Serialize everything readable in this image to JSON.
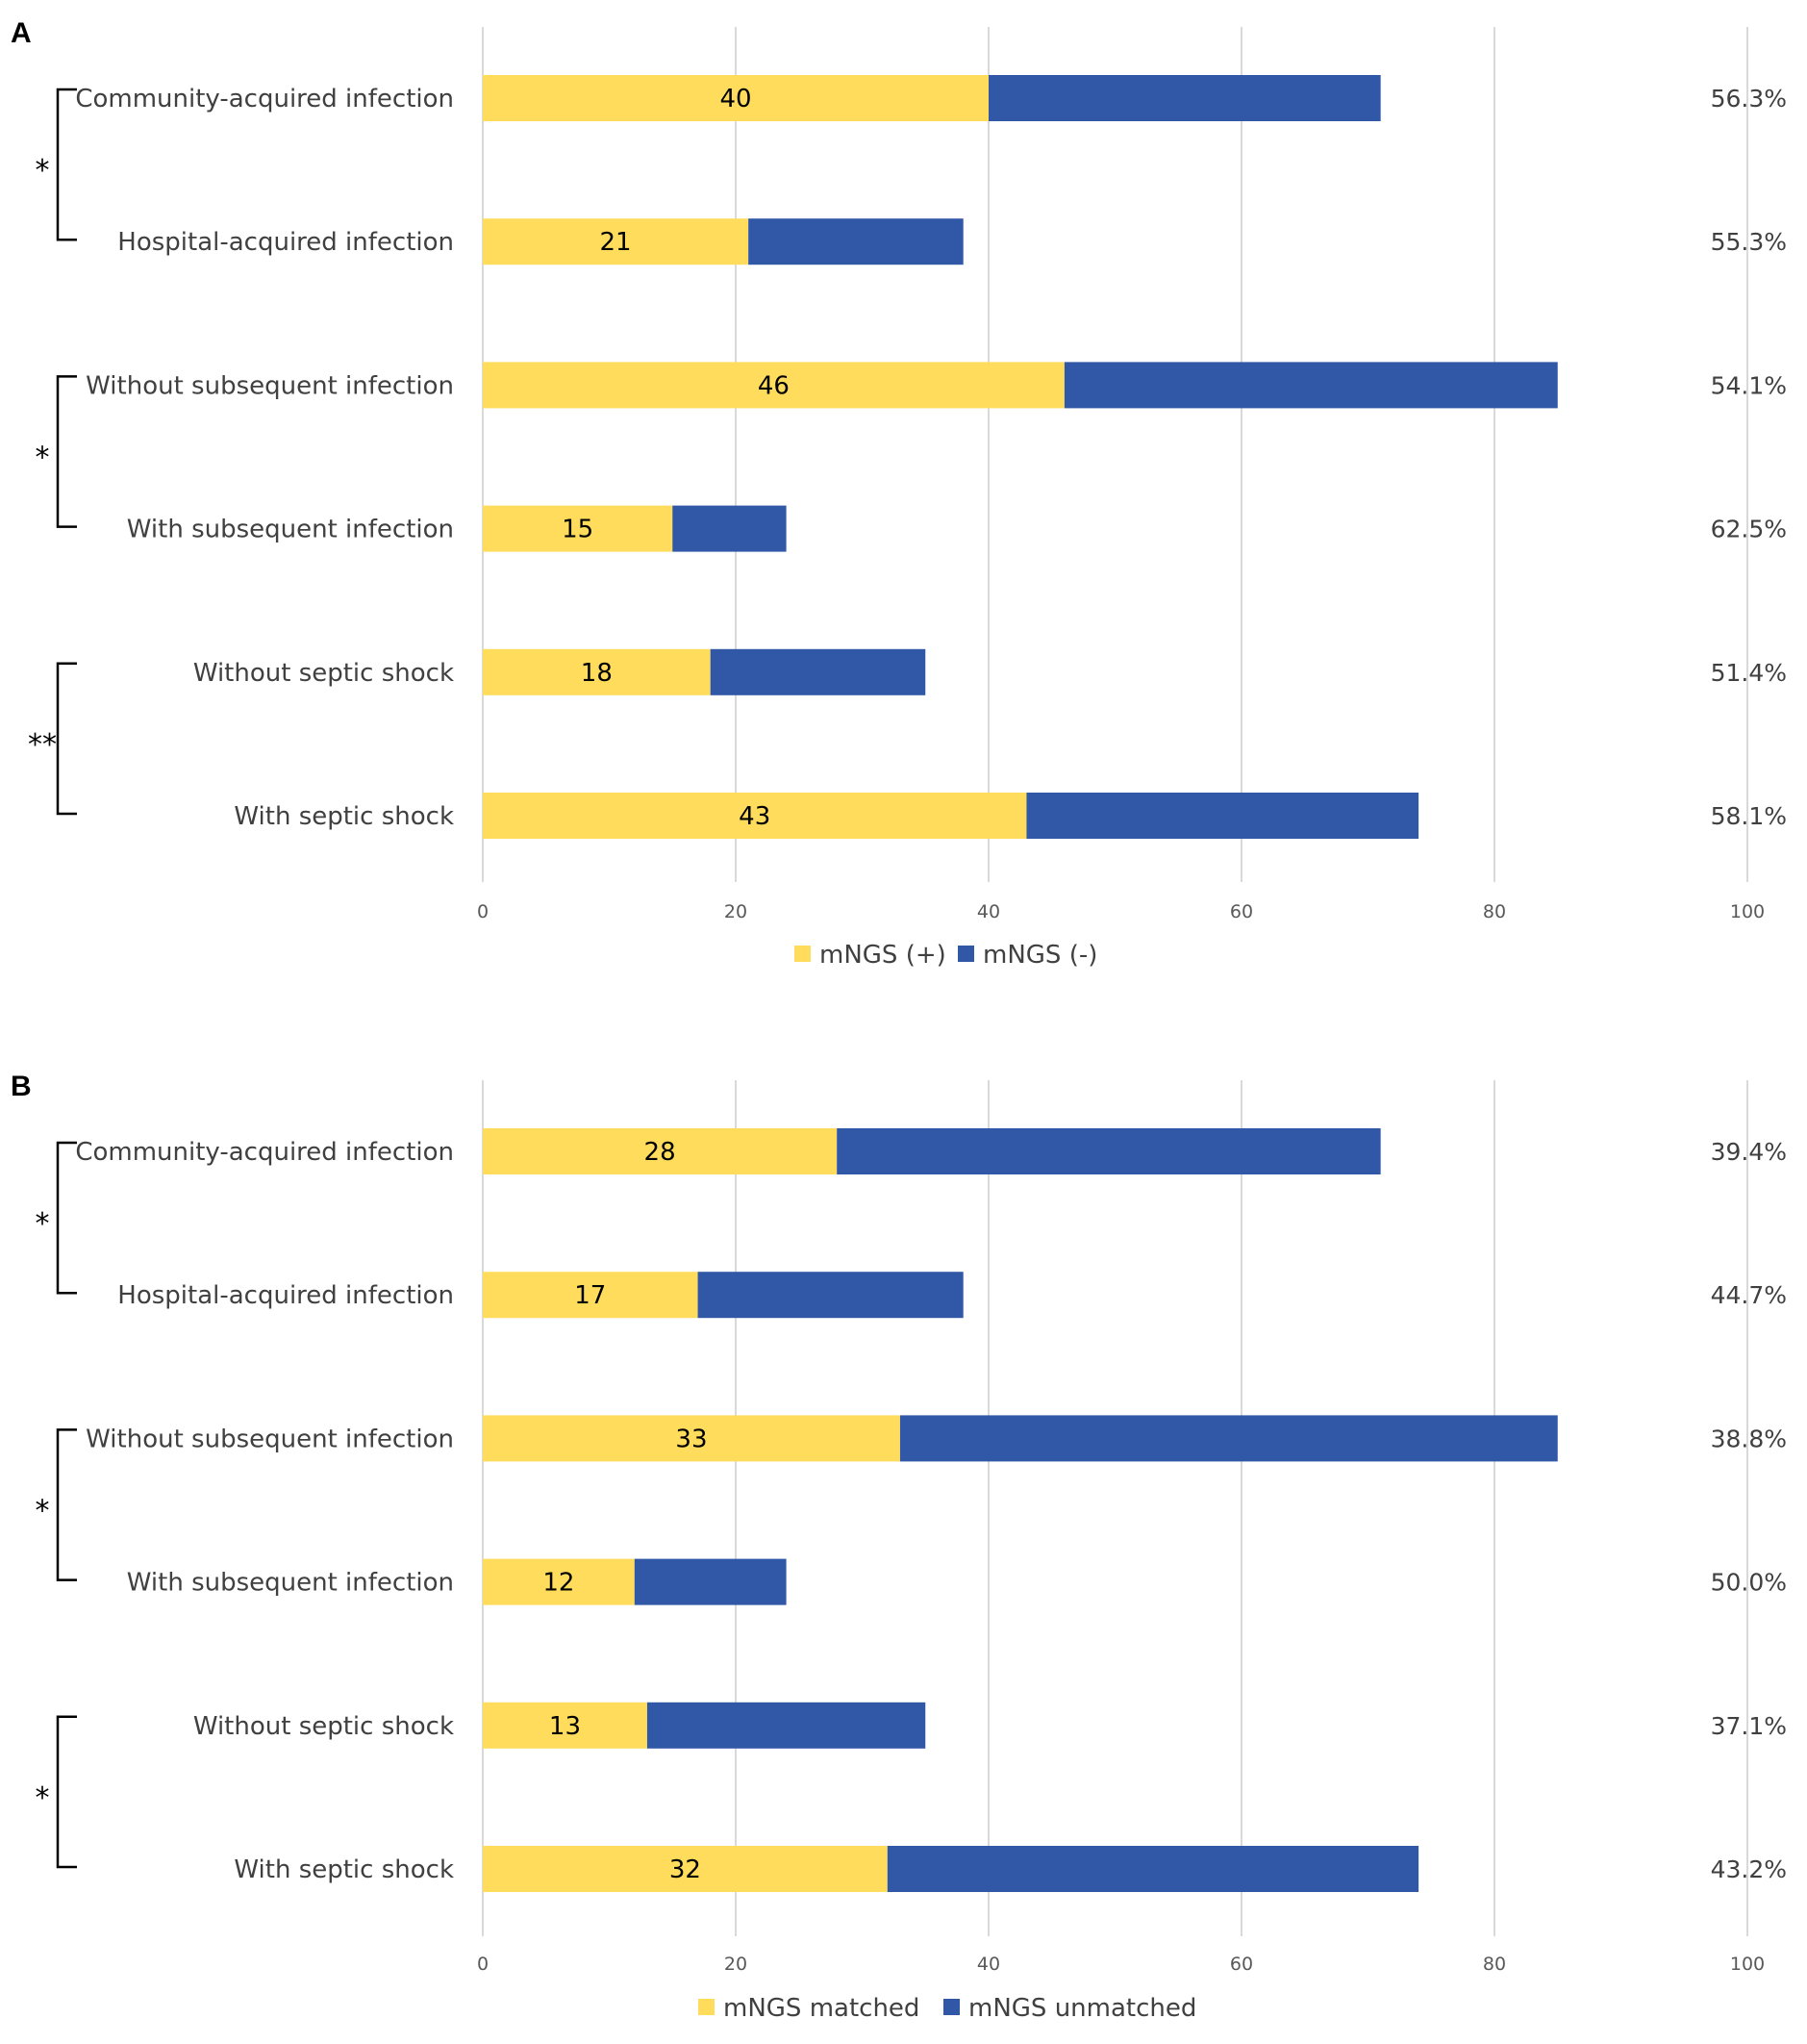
{
  "colors": {
    "positive": "#FFDC5C",
    "negative": "#3058A6",
    "grid": "#D9D9D9"
  },
  "chart_data": [
    {
      "panel": "A",
      "type": "bar",
      "orientation": "horizontal",
      "stacked": true,
      "categories": [
        "Community-acquired infection",
        "Hospital-acquired infection",
        "Without subsequent infection",
        "With subsequent infection",
        "Without septic shock",
        "With septic shock"
      ],
      "series": [
        {
          "name": "mNGS (+)",
          "color": "#FFDC5C",
          "values": [
            40,
            21,
            46,
            15,
            18,
            43
          ]
        },
        {
          "name": "mNGS (-)",
          "color": "#3058A6",
          "values": [
            31,
            17,
            39,
            9,
            17,
            31
          ]
        }
      ],
      "percentages": [
        "56.3%",
        "55.3%",
        "54.1%",
        "62.5%",
        "51.4%",
        "58.1%"
      ],
      "significance": [
        "*",
        "*",
        "**"
      ],
      "xlim": [
        0,
        100
      ],
      "xticks": [
        "0",
        "20",
        "40",
        "60",
        "80",
        "100"
      ],
      "grid": true,
      "legend_position": "bottom"
    },
    {
      "panel": "B",
      "type": "bar",
      "orientation": "horizontal",
      "stacked": true,
      "categories": [
        "Community-acquired infection",
        "Hospital-acquired infection",
        "Without subsequent infection",
        "With subsequent infection",
        "Without septic shock",
        "With septic shock"
      ],
      "series": [
        {
          "name": "mNGS matched",
          "color": "#FFDC5C",
          "values": [
            28,
            17,
            33,
            12,
            13,
            32
          ]
        },
        {
          "name": "mNGS unmatched",
          "color": "#3058A6",
          "values": [
            43,
            21,
            52,
            12,
            22,
            42
          ]
        }
      ],
      "percentages": [
        "39.4%",
        "44.7%",
        "38.8%",
        "50.0%",
        "37.1%",
        "43.2%"
      ],
      "significance": [
        "*",
        "*",
        "*"
      ],
      "xlim": [
        0,
        100
      ],
      "xticks": [
        "0",
        "20",
        "40",
        "60",
        "80",
        "100"
      ],
      "grid": true,
      "legend_position": "bottom"
    }
  ]
}
